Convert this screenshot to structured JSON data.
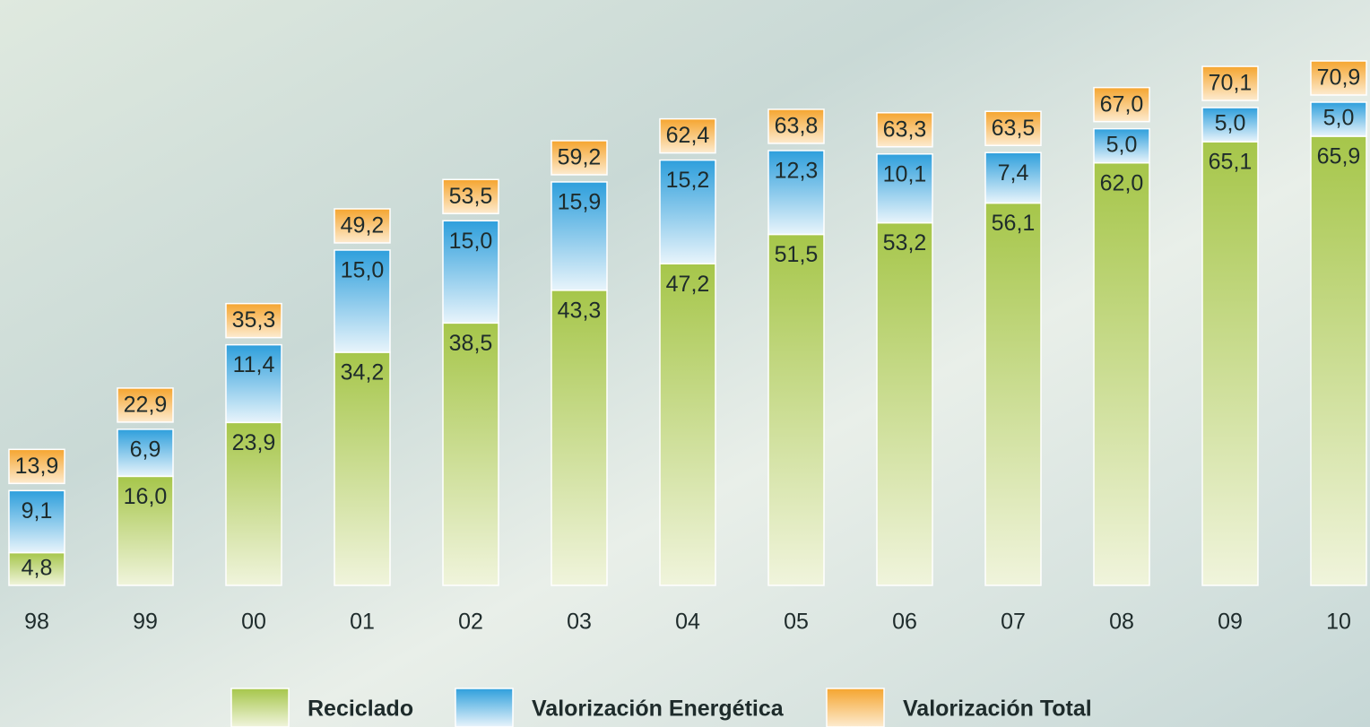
{
  "chart_data": {
    "type": "bar",
    "stacked": true,
    "categories": [
      "98",
      "99",
      "00",
      "01",
      "02",
      "03",
      "04",
      "05",
      "06",
      "07",
      "08",
      "09",
      "10"
    ],
    "series": [
      {
        "name": "Reciclado",
        "color": "#a6c64a",
        "values": [
          4.8,
          16.0,
          23.9,
          34.2,
          38.5,
          43.3,
          47.2,
          51.5,
          53.2,
          56.1,
          62.0,
          65.1,
          65.9
        ],
        "value_labels": [
          "4,8",
          "16,0",
          "23,9",
          "34,2",
          "38,5",
          "43,3",
          "47,2",
          "51,5",
          "53,2",
          "56,1",
          "62,0",
          "65,1",
          "65,9"
        ]
      },
      {
        "name": "Valorización Energética",
        "color": "#2e9fdc",
        "values": [
          9.1,
          6.9,
          11.4,
          15.0,
          15.0,
          15.9,
          15.2,
          12.3,
          10.1,
          7.4,
          5.0,
          5.0,
          5.0
        ],
        "value_labels": [
          "9,1",
          "6,9",
          "11,4",
          "15,0",
          "15,0",
          "15,9",
          "15,2",
          "12,3",
          "10,1",
          "7,4",
          "5,0",
          "5,0",
          "5,0"
        ]
      },
      {
        "name": "Valorización Total",
        "color": "#f5a52f",
        "role": "total",
        "values": [
          13.9,
          22.9,
          35.3,
          49.2,
          53.5,
          59.2,
          62.4,
          63.8,
          63.3,
          63.5,
          67.0,
          70.1,
          70.9
        ],
        "value_labels": [
          "13,9",
          "22,9",
          "35,3",
          "49,2",
          "53,5",
          "59,2",
          "62,4",
          "63,8",
          "63,3",
          "63,5",
          "67,0",
          "70,1",
          "70,9"
        ]
      }
    ]
  }
}
